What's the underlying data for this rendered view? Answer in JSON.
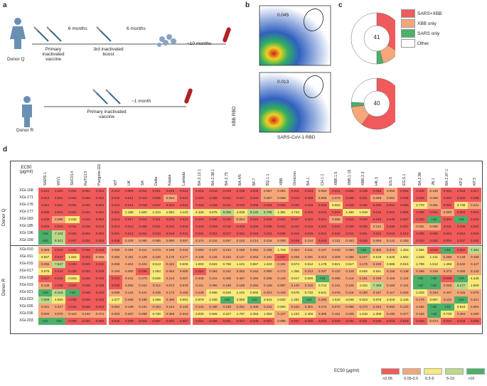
{
  "panels": {
    "a": "a",
    "b": "b",
    "c": "c",
    "d": "d"
  },
  "panel_a": {
    "donor_q": "Donor Q",
    "donor_r": "Donor R",
    "six_months_1": "6 months",
    "six_months_2": "6 months",
    "ten_months": "~10 months",
    "one_month": "~1 month",
    "primary_q": "Primary inactivated vaccine",
    "boost_q": "3rd inactivated boost",
    "primary_r": "Primary inactivated vaccine"
  },
  "panel_b": {
    "gate_top": "0.045",
    "gate_bottom": "0.013",
    "y_axis": "XBB RBD",
    "x_axis": "SARS-CoV-1 RBD"
  },
  "panel_c": {
    "legend": [
      {
        "label": "SARS+XBB",
        "color": "#f05a5a"
      },
      {
        "label": "XBB only",
        "color": "#f5a77a"
      },
      {
        "label": "SARS only",
        "color": "#4caf6a"
      },
      {
        "label": "Other",
        "color": "#ffffff"
      }
    ],
    "donuts": [
      {
        "center": "41",
        "slices": [
          0.34,
          0.12,
          0.04,
          0.5
        ]
      },
      {
        "center": "40",
        "slices": [
          0.6,
          0.13,
          0.03,
          0.24
        ]
      }
    ]
  },
  "panel_d": {
    "corner_label_1": "EC50",
    "corner_label_2": "(μg/ml)",
    "columns": [
      "SARS-1",
      "WIV1",
      "SHC014",
      "RaTG13",
      "Pangolin-GD",
      "WT",
      "UK",
      "SA",
      "Delta",
      "Kappa",
      "Lambda",
      "BA.2.12.1",
      "BA.2.38.1",
      "BA.2.75",
      "BA.4/5",
      "BF.7",
      "BQ.1.1",
      "XBB",
      "Omicron",
      "BA.1",
      "CH.1.1",
      "XBB.1.5",
      "XBB.1.16",
      "XBB.2.3",
      "HK.3",
      "EG.5",
      "EG.5.1",
      "BA.2.86",
      "JN.1",
      "BA.2.87.1",
      "KP.2",
      "KP.3"
    ],
    "groups": [
      {
        "label": "Donor Q",
        "rows": [
          {
            "name": "XGi-168",
            "values": [
              "0.012",
              "0.004",
              "0.004",
              "0.004",
              "0.004",
              "0.012",
              "0.009",
              "0.012",
              "0.001",
              "0.045",
              "0.013",
              "0.015",
              "0.018",
              "0.019",
              "0.039",
              "0.030",
              "0.057",
              "0.051",
              "0.011",
              "0.023",
              "0.053",
              "0.041",
              "0.028",
              "0.038",
              "0.046",
              "0.053",
              "0.032",
              "0.028",
              "0.130",
              "0.004",
              "0.019",
              "0.017"
            ]
          },
          {
            "name": "XGi-171",
            "values": [
              "0.013",
              "0.004",
              "0.004",
              "0.004",
              "0.004",
              "0.012",
              "0.014",
              "0.013",
              "0.006",
              "0.054",
              "0.013",
              "0.016",
              "0.025",
              "0.022",
              "0.047",
              "0.034",
              "0.067",
              "0.059",
              "0.014",
              "0.028",
              "0.055",
              "0.078",
              "0.028",
              "0.041",
              "0.058",
              "0.061",
              "0.038",
              "0.044",
              "0.256",
              "0.004",
              "0.020",
              "0.038"
            ]
          },
          {
            "name": "XGi-176",
            "values": [
              "0.011",
              "0.001",
              "0.004",
              "0.001",
              "0.004",
              "0.012",
              "0.014",
              "0.019",
              "0.027",
              "0.013",
              "0.013",
              "0.016",
              "0.018",
              "0.012",
              "0.040",
              "0.009",
              "0.034",
              "0.032",
              "0.034",
              "0.019",
              "0.032",
              "0.502",
              "0.019",
              "0.032",
              "0.035",
              "0.041",
              "0.030",
              "1.776",
              "0.251",
              "0.001",
              "2.736",
              "0.221"
            ]
          },
          {
            "name": "XGi-177",
            "values": [
              "0.009",
              "0.001",
              "0.001",
              "0.001",
              "0.001",
              "0.021",
              "1.185",
              "1.500",
              "1.214",
              "1.081",
              "1.142",
              "4.425",
              "3.575",
              "6.066",
              "4.039",
              "8.125",
              "5.789",
              "1.391",
              "4.743",
              "0.015",
              "0.010",
              "0.016",
              "1.460",
              "1.818",
              "0.015",
              "0.004",
              "0.005",
              "0.005",
              "0.001",
              "0.090",
              "0.004",
              "0.004"
            ]
          },
          {
            "name": "XGi-183",
            "values": [
              "0.039",
              "0.086",
              "2.042",
              "0.012",
              "0.004",
              "0.014",
              "0.017",
              "0.014",
              "0.011",
              "0.028",
              "0.013",
              "0.018",
              "0.040",
              "0.032",
              "0.054",
              "0.018",
              "0.029",
              "0.024",
              "0.027",
              "0.022",
              "0.041",
              "0.058",
              "0.018",
              "0.028",
              "0.048",
              "0.048",
              "0.027",
              "0.020",
              ">10",
              "0.004",
              ">10",
              "0.020"
            ]
          },
          {
            "name": "XGi-185",
            "values": [
              "0.020",
              "0.016",
              "0.011",
              "0.016",
              "0.013",
              "0.014",
              "0.013",
              "0.009",
              "0.041",
              "0.015",
              "0.018",
              "0.033",
              "0.019",
              "0.019",
              "0.029",
              "0.026",
              "0.038",
              "0.021",
              "0.022",
              "0.019",
              "0.023",
              "0.031",
              "0.020",
              "0.030",
              "0.114",
              "0.025",
              "0.037",
              "0.061",
              "0.095",
              "0.011",
              "0.039",
              "0.022"
            ]
          },
          {
            "name": "XGi-196",
            "values": [
              ">10",
              "7.103",
              "0.004",
              "0.004",
              "0.004",
              "0.021",
              "0.013",
              "0.011",
              "0.010",
              "0.016",
              "0.012",
              "0.031",
              "0.012",
              "0.017",
              "0.021",
              "0.018",
              "0.024",
              "0.036",
              "0.015",
              "0.015",
              "0.012",
              "0.016",
              "0.012",
              "0.021",
              "0.012",
              "0.010",
              "0.013",
              "0.005",
              "0.005",
              "0.003",
              "0.012",
              "0.015"
            ]
          },
          {
            "name": "XGi-199",
            "values": [
              ">10",
              "9.321",
              "0.007",
              "0.004",
              "0.003",
              "0.029",
              "0.108",
              "0.080",
              "0.065",
              "0.090",
              "0.097",
              "0.174",
              "0.134",
              "0.267",
              "0.163",
              "0.214",
              "0.218",
              "0.055",
              "0.045",
              "0.134",
              "0.023",
              "0.113",
              "0.163",
              "0.043",
              "0.056",
              "0.142",
              "0.153",
              "0.010",
              "0.042",
              "0.004",
              "0.037",
              "0.043"
            ]
          }
        ]
      },
      {
        "label": "Donor R",
        "rows": [
          {
            "name": "XGi-010",
            "values": [
              "0.383",
              "0.043",
              "0.040",
              "0.040",
              "0.018",
              "0.069",
              "0.194",
              "0.111",
              "0.274",
              "0.198",
              "0.210",
              "0.060",
              "0.137",
              "0.244",
              "0.156",
              "0.254",
              "0.195",
              "1.724",
              "0.324",
              "0.311",
              "0.107",
              "0.233",
              "0.280",
              ">10",
              "0.305",
              "0.372",
              "1.453",
              "1.584",
              "0.010",
              ">10",
              "0.004",
              "7.191"
            ]
          },
          {
            "name": "XGi-011",
            "values": [
              "0.557",
              "0.047",
              "1.824",
              "0.034",
              "0.055",
              "0.055",
              "0.181",
              "0.128",
              "0.240",
              "0.170",
              "0.177",
              "0.128",
              "0.126",
              "0.232",
              "0.147",
              "0.252",
              "0.191",
              "0.037",
              "0.258",
              "0.291",
              "0.312",
              "0.309",
              "0.255",
              "0.247",
              "0.519",
              "0.525",
              "1.562",
              "1.629",
              "1.131",
              "0.280",
              "0.149",
              "0.165"
            ]
          },
          {
            "name": "XGi-015",
            "values": [
              "0.065",
              "7.847",
              "0.043",
              "0.049",
              "0.012",
              "0.099",
              "0.422",
              "0.424",
              "0.513",
              "0.422",
              "0.506",
              "1.003",
              "0.822",
              "0.758",
              "1.131",
              "0.867",
              "1.023",
              "0.191",
              "0.574",
              "0.812",
              "1.178",
              "0.621",
              "0.517",
              "0.178",
              "0.190",
              "0.585",
              "0.615",
              "1.798",
              "1.512",
              "1.496",
              "0.232",
              "0.127"
            ]
          },
          {
            "name": "XGi-017",
            "values": [
              "0.676",
              "0.043",
              "0.040",
              "0.040",
              "0.029",
              "0.183",
              "0.060",
              "0.036",
              "1.053",
              "0.054",
              "0.060",
              "0.024",
              "0.054",
              "0.162",
              "0.063",
              "0.162",
              "0.090",
              "0.174",
              "1.356",
              "0.313",
              "0.237",
              "0.120",
              "0.129",
              "0.605",
              "0.591",
              "0.150",
              "0.138",
              "0.368",
              "0.319",
              "0.373",
              "0.450",
              "0.140"
            ]
          },
          {
            "name": "XGi-018",
            "values": [
              "0.047",
              "0.044",
              "0.815",
              "0.040",
              "0.035",
              "0.010",
              "0.231",
              "0.279",
              "0.525",
              "0.213",
              "0.207",
              "0.408",
              "0.241",
              "0.406",
              "0.407",
              "0.494",
              "0.298",
              "0.126",
              "0.617",
              "0.599",
              ">10",
              "0.080",
              "0.119",
              "0.181",
              "0.159",
              "0.118",
              "0.124",
              ">10",
              ">10",
              "0.049",
              ">10",
              "4.445"
            ]
          },
          {
            "name": "XGi-019",
            "values": [
              "0.125",
              "0.039",
              "0.044",
              "0.045",
              "0.038",
              "0.030",
              "0.093",
              "0.224",
              "0.114",
              "0.072",
              "0.078",
              "0.111",
              "0.090",
              "0.198",
              "0.195",
              "0.252",
              "0.108",
              "0.097",
              "0.120",
              "0.310",
              "0.742",
              "0.141",
              "0.126",
              "4.222",
              "7.489",
              "0.183",
              "0.124",
              ">10",
              ">10",
              "0.059",
              "6.177",
              "1.509"
            ]
          },
          {
            "name": "XGi-021",
            "values": [
              ">10",
              "8.315",
              ">10",
              "0.049",
              "0.010",
              "0.089",
              "0.144",
              "0.121",
              "0.345",
              "0.173",
              "0.160",
              "0.239",
              "0.566",
              "0.526",
              "1.101",
              "0.902",
              "0.401",
              "0.109",
              "0.578",
              "0.732",
              "0.541",
              "0.075",
              "0.116",
              "0.150",
              "0.187",
              "0.117",
              "0.204",
              "1.019",
              "0.254",
              "0.407",
              "0.115",
              "0.076"
            ]
          },
          {
            "name": "XGi-023",
            "values": [
              "7.000",
              "4.920",
              "0.036",
              "0.038",
              "0.016",
              "1.377",
              "0.498",
              "0.195",
              "1.056",
              "0.480",
              "0.591",
              "0.879",
              "2.406",
              ">10",
              "3.555",
              ">10",
              "4.941",
              "0.520",
              "1.281",
              ">10",
              "0.285",
              "1.542",
              "3.048",
              "0.623",
              "0.678",
              "3.519",
              "2.145",
              "0.176",
              "0.867",
              "0.119",
              ">10",
              "0.421"
            ]
          },
          {
            "name": "XGi-026",
            "values": [
              "0.421",
              "0.427",
              "0.041",
              "0.045",
              "0.043",
              "0.064",
              "0.149",
              "0.131",
              "0.184",
              "0.144",
              "0.142",
              "0.132",
              "0.160",
              "0.238",
              "0.281",
              "0.408",
              "0.242",
              "0.894",
              "0.234",
              "0.301",
              "0.174",
              "0.072",
              "0.098",
              "0.273",
              "0.243",
              "0.094",
              "0.143",
              "0.282",
              ">10",
              ">10",
              "0.915",
              "0.364"
            ]
          },
          {
            "name": "XGi-036",
            "values": [
              "0.060",
              "0.070",
              "0.110",
              "0.102",
              "0.074",
              "0.063",
              "0.267",
              "0.298",
              "0.720",
              "0.358",
              "0.344",
              "0.825",
              "0.926",
              "2.227",
              "1.797",
              "2.353",
              "1.083",
              "0.127",
              "1.152",
              "2.400",
              "0.385",
              "0.161",
              "0.225",
              "1.616",
              "1.308",
              "0.190",
              "0.377",
              "0.164",
              ">10",
              "0.700",
              "0.454",
              "0.289"
            ]
          },
          {
            "name": "XGi-203",
            "values": [
              ">10",
              ">10",
              "0.005",
              "0.004",
              "0.004",
              "0.015",
              "0.009",
              "0.016",
              "0.007",
              "0.007",
              "0.007",
              "0.021",
              "0.026",
              "0.041",
              "0.027",
              "0.038",
              "0.037",
              "0.095",
              "0.037",
              "0.030",
              "0.032",
              "0.020",
              "0.031",
              "0.021",
              "0.036",
              "0.016",
              "0.016",
              "0.043",
              "0.074",
              "0.004",
              "0.018",
              "0.030"
            ]
          }
        ]
      }
    ],
    "legend_title": "EC50 (μg/ml)",
    "legend": [
      {
        "label": "<0.05",
        "color": "#f05a5a"
      },
      {
        "label": "0.05-0.5",
        "color": "#f5a77a"
      },
      {
        "label": "0.5-5",
        "color": "#f7e97a"
      },
      {
        "label": "5-10",
        "color": "#b9d98a"
      },
      {
        "label": ">10",
        "color": "#4caf6a"
      }
    ]
  }
}
